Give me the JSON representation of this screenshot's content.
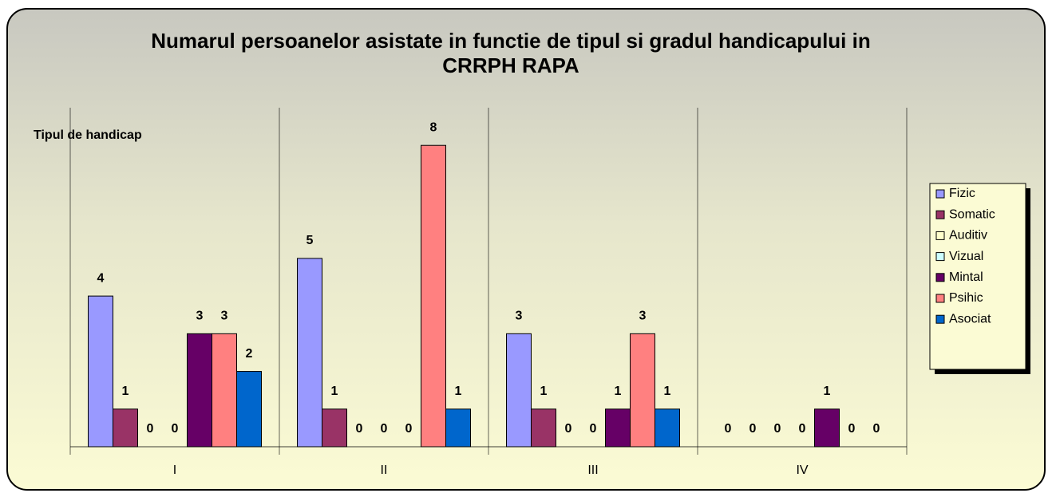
{
  "chart_data": {
    "type": "bar",
    "title": "Numarul persoanelor asistate in functie de tipul si gradul handicapului in CRRPH RAPA",
    "ylabel": "Tipul de handicap",
    "categories": [
      "I",
      "II",
      "III",
      "IV"
    ],
    "series": [
      {
        "name": "Fizic",
        "color": "#9999ff",
        "values": [
          4,
          5,
          3,
          0
        ]
      },
      {
        "name": "Somatic",
        "color": "#993366",
        "values": [
          1,
          1,
          1,
          0
        ]
      },
      {
        "name": "Auditiv",
        "color": "#ffffcc",
        "values": [
          0,
          0,
          0,
          0
        ]
      },
      {
        "name": "Vizual",
        "color": "#ccffff",
        "values": [
          0,
          0,
          0,
          0
        ]
      },
      {
        "name": "Mintal",
        "color": "#660066",
        "values": [
          3,
          0,
          1,
          1
        ]
      },
      {
        "name": "Psihic",
        "color": "#ff8080",
        "values": [
          3,
          8,
          3,
          0
        ]
      },
      {
        "name": "Asociat",
        "color": "#0066cc",
        "values": [
          2,
          1,
          1,
          0
        ]
      }
    ],
    "ylim": [
      0,
      9
    ],
    "legend": "right"
  }
}
